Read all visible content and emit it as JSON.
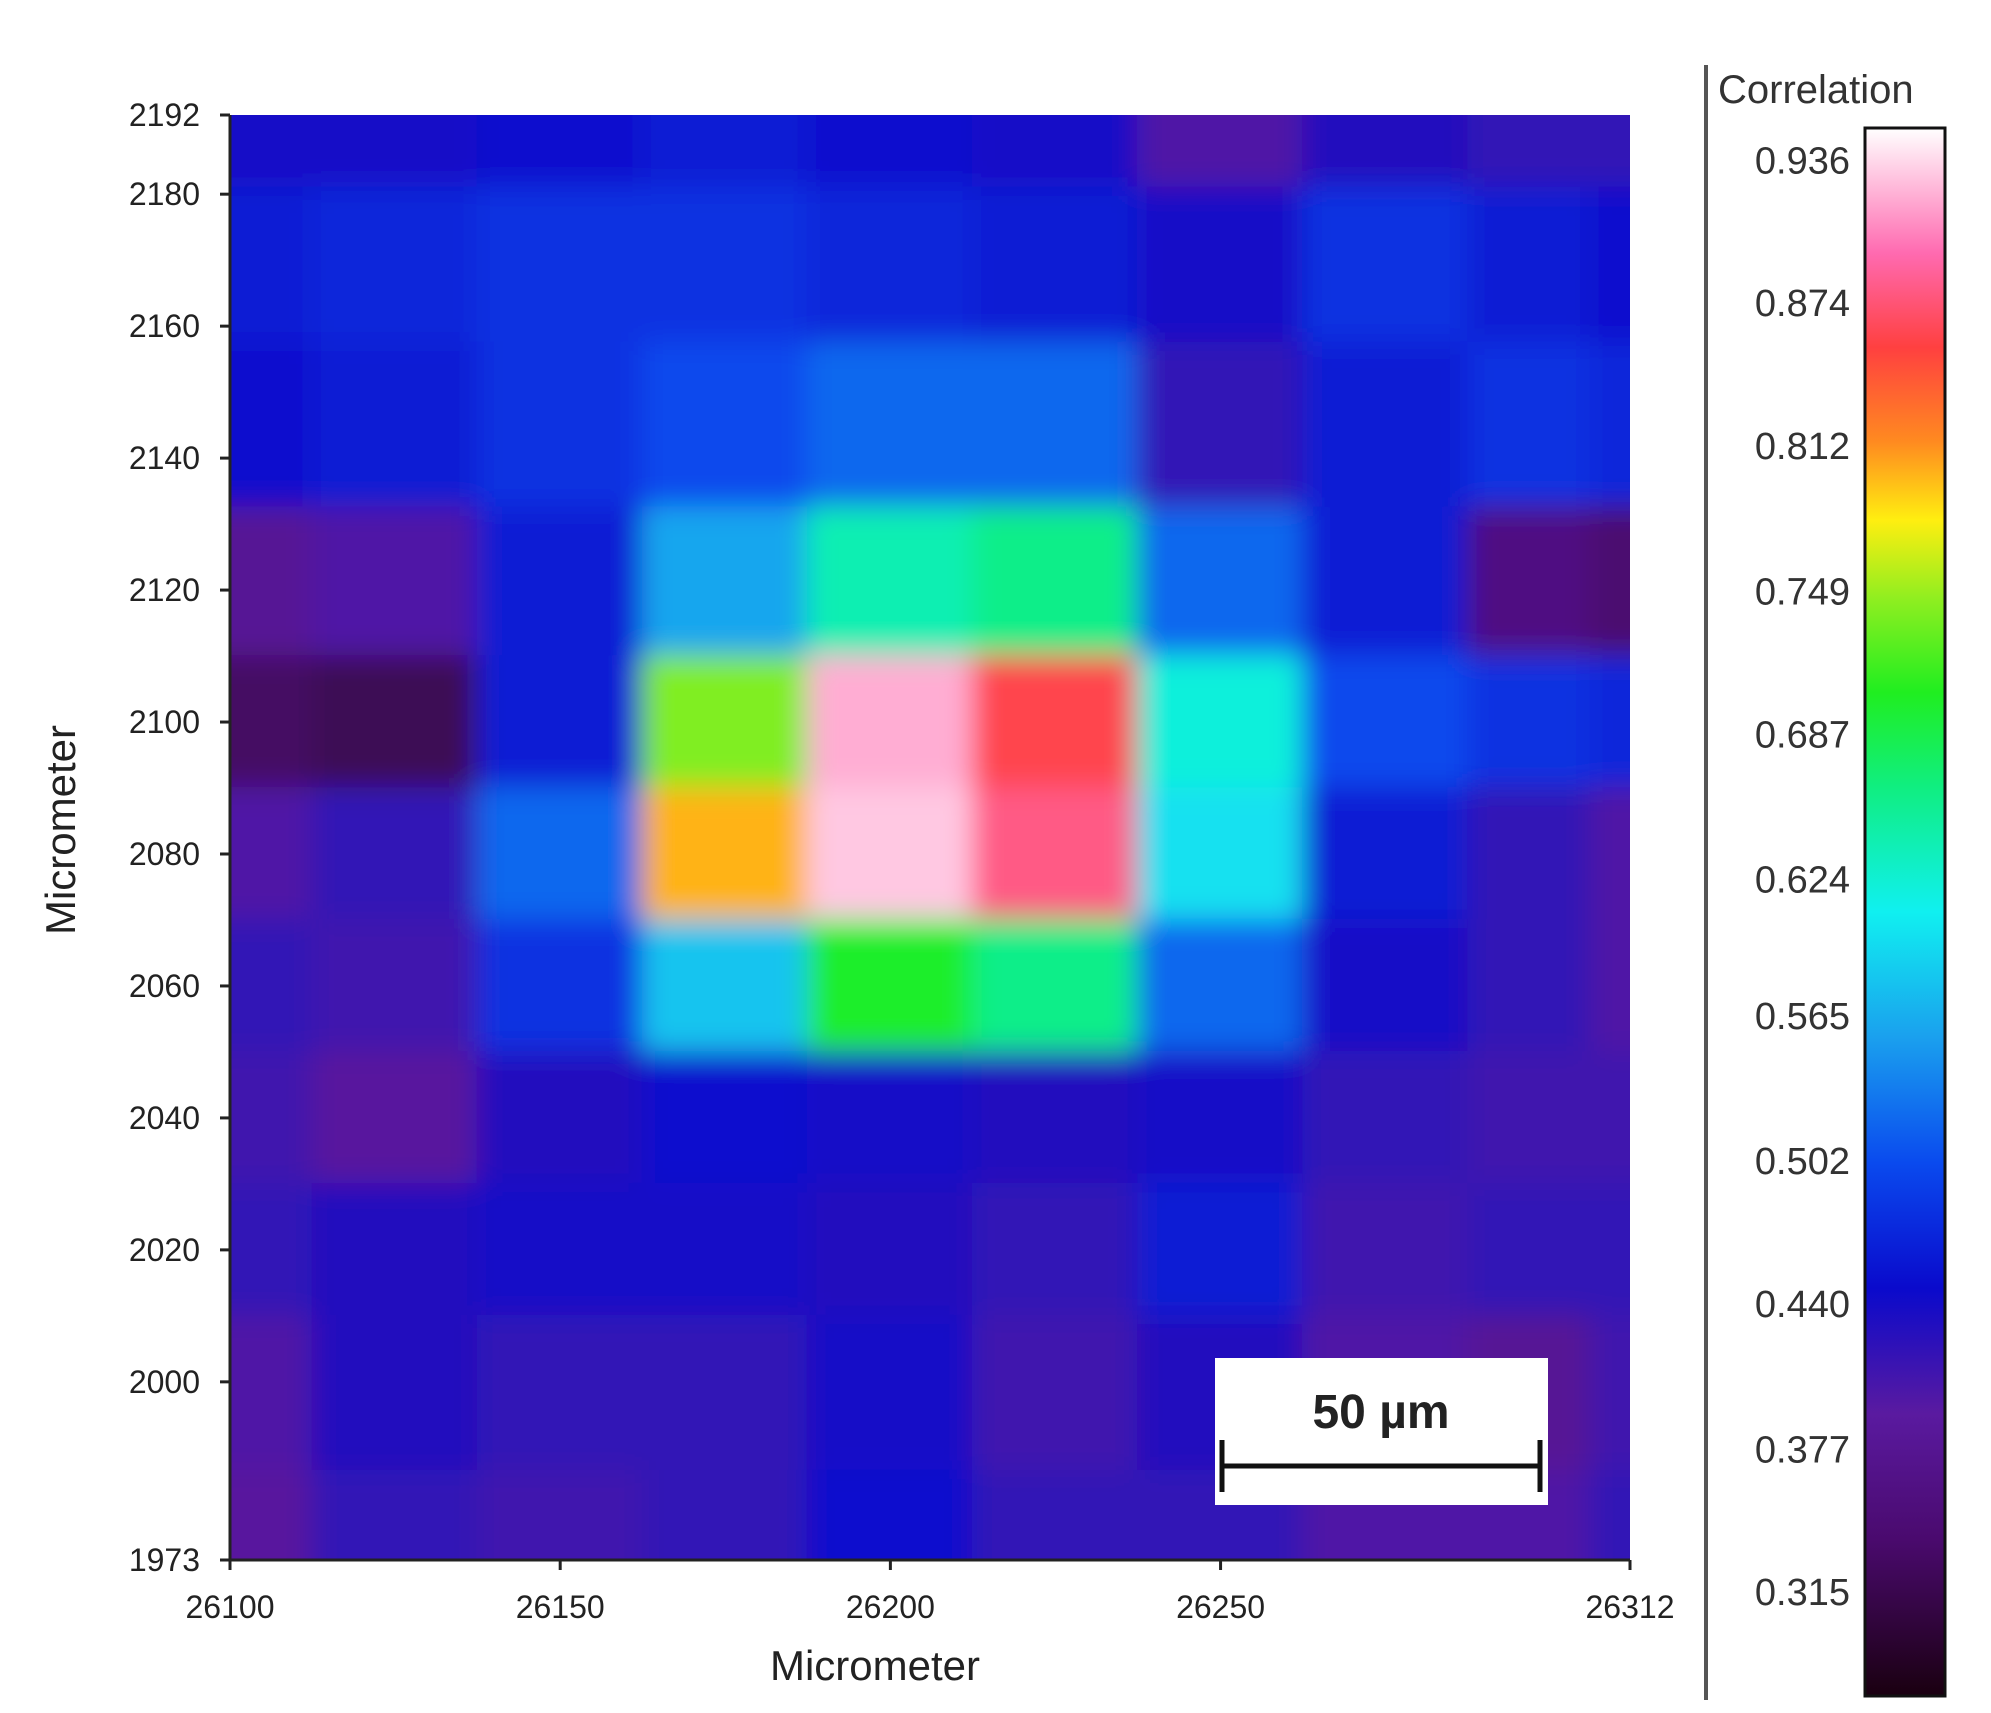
{
  "chart_data": {
    "type": "heatmap",
    "xlabel": "Micrometer",
    "ylabel": "Micrometer",
    "xlim": [
      26100,
      26312
    ],
    "ylim": [
      1973,
      2192
    ],
    "x_ticks": [
      "26100",
      "26150",
      "26200",
      "26250",
      "26312"
    ],
    "y_ticks": [
      "2192",
      "2180",
      "2160",
      "2140",
      "2120",
      "2100",
      "2080",
      "2060",
      "2040",
      "2020",
      "2000",
      "1973"
    ],
    "x_grid": [
      26100,
      26125,
      26150,
      26175,
      26200,
      26225,
      26250,
      26275,
      26300,
      26312
    ],
    "y_grid": [
      2192,
      2170,
      2145,
      2120,
      2100,
      2080,
      2060,
      2040,
      2020,
      2000,
      1973
    ],
    "z": [
      [
        0.44,
        0.44,
        0.45,
        0.46,
        0.45,
        0.44,
        0.4,
        0.43,
        0.42,
        0.42
      ],
      [
        0.46,
        0.47,
        0.48,
        0.48,
        0.47,
        0.46,
        0.44,
        0.48,
        0.46,
        0.45
      ],
      [
        0.45,
        0.46,
        0.48,
        0.5,
        0.52,
        0.52,
        0.42,
        0.46,
        0.48,
        0.47
      ],
      [
        0.38,
        0.4,
        0.46,
        0.56,
        0.64,
        0.66,
        0.52,
        0.46,
        0.36,
        0.34
      ],
      [
        0.33,
        0.32,
        0.46,
        0.74,
        0.92,
        0.86,
        0.62,
        0.5,
        0.48,
        0.47
      ],
      [
        0.4,
        0.42,
        0.52,
        0.8,
        0.93,
        0.88,
        0.6,
        0.46,
        0.42,
        0.4
      ],
      [
        0.42,
        0.41,
        0.48,
        0.58,
        0.7,
        0.66,
        0.52,
        0.44,
        0.42,
        0.4
      ],
      [
        0.41,
        0.39,
        0.43,
        0.45,
        0.44,
        0.43,
        0.44,
        0.42,
        0.41,
        0.41
      ],
      [
        0.42,
        0.43,
        0.44,
        0.44,
        0.43,
        0.42,
        0.46,
        0.41,
        0.42,
        0.42
      ],
      [
        0.4,
        0.43,
        0.42,
        0.42,
        0.44,
        0.41,
        0.43,
        0.4,
        0.38,
        0.41
      ],
      [
        0.39,
        0.42,
        0.41,
        0.42,
        0.45,
        0.42,
        0.42,
        0.4,
        0.4,
        0.42
      ]
    ],
    "colorbar": {
      "title": "Correlation",
      "ticks": [
        "0.936",
        "0.874",
        "0.812",
        "0.749",
        "0.687",
        "0.624",
        "0.565",
        "0.502",
        "0.440",
        "0.377",
        "0.315"
      ],
      "min": 0.27,
      "max": 0.95
    },
    "scale_bar": {
      "label": "50 µm",
      "length": 50
    }
  }
}
